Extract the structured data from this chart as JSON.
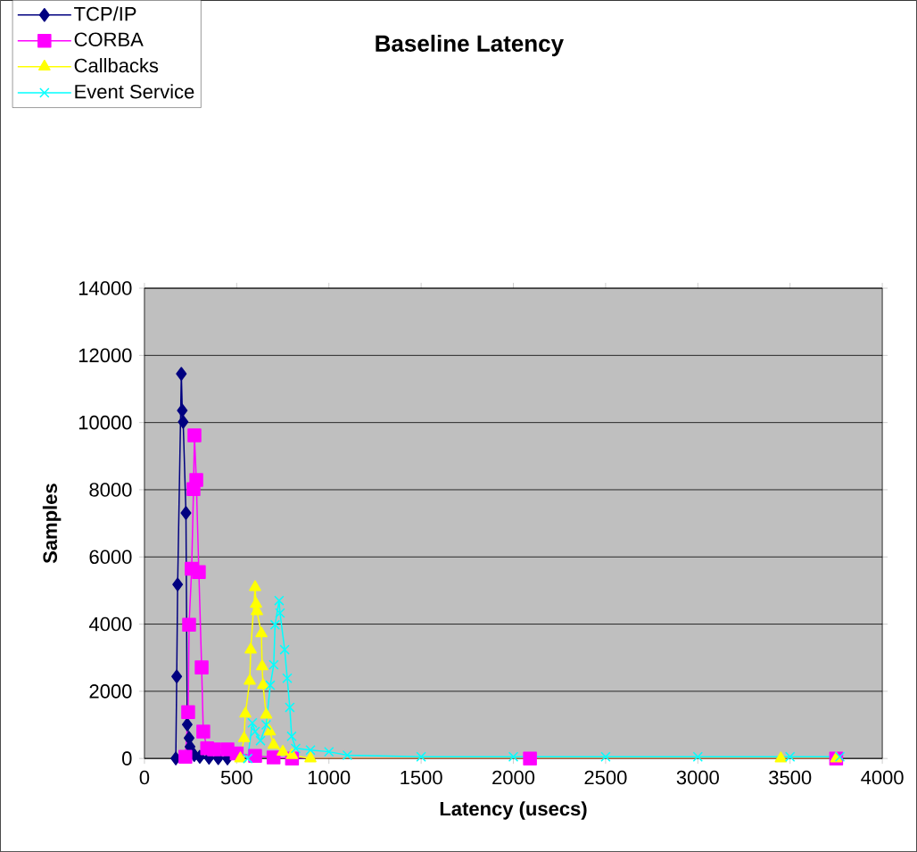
{
  "chart_data": {
    "type": "line",
    "title": "Baseline Latency",
    "xlabel": "Latency (usecs)",
    "ylabel": "Samples",
    "xlim": [
      0,
      4000
    ],
    "xticks": [
      0,
      500,
      1000,
      1500,
      2000,
      2500,
      3000,
      3500,
      4000
    ],
    "ylim": [
      0,
      14000
    ],
    "yticks": [
      0,
      2000,
      4000,
      6000,
      8000,
      10000,
      12000,
      14000
    ],
    "grid": "y",
    "legend": "top left",
    "series": [
      {
        "name": "TCP/IP",
        "color": "#000080",
        "marker": "diamond",
        "x": [
          170,
          175,
          180,
          200,
          205,
          210,
          225,
          232,
          242,
          247,
          255,
          270,
          300,
          350,
          400,
          450
        ],
        "values": [
          0,
          2440,
          5180,
          11450,
          10360,
          10020,
          7310,
          1010,
          610,
          350,
          200,
          100,
          50,
          20,
          10,
          0
        ]
      },
      {
        "name": "CORBA",
        "color": "#ff00ff",
        "marker": "square",
        "x": [
          222,
          237,
          242,
          256,
          266,
          271,
          281,
          295,
          310,
          319,
          340,
          377,
          450,
          500,
          600,
          700,
          800,
          2090,
          3750
        ],
        "values": [
          50,
          1380,
          3980,
          5650,
          8020,
          9620,
          8290,
          5550,
          2710,
          800,
          300,
          270,
          270,
          150,
          80,
          30,
          0,
          0,
          0
        ]
      },
      {
        "name": "Callbacks",
        "color": "#ffff00",
        "marker": "triangle",
        "x": [
          520,
          540,
          547,
          571,
          576,
          600,
          605,
          610,
          634,
          638,
          643,
          660,
          680,
          700,
          750,
          800,
          900,
          3450,
          3750
        ],
        "values": [
          0,
          600,
          1330,
          2310,
          3240,
          5100,
          4600,
          4380,
          3720,
          2740,
          2180,
          1300,
          800,
          400,
          200,
          100,
          0,
          0,
          0
        ]
      },
      {
        "name": "Event Service",
        "color": "#00ffff",
        "marker": "cross",
        "x": [
          560,
          585,
          600,
          629,
          660,
          682,
          701,
          708,
          730,
          735,
          760,
          774,
          788,
          798,
          820,
          900,
          1000,
          1100,
          1500,
          2000,
          2500,
          3000,
          3500,
          3770
        ],
        "values": [
          0,
          1060,
          800,
          530,
          1000,
          2180,
          2790,
          3980,
          4700,
          4330,
          3240,
          2390,
          1520,
          660,
          300,
          250,
          200,
          100,
          50,
          50,
          50,
          50,
          50,
          50
        ]
      }
    ]
  }
}
